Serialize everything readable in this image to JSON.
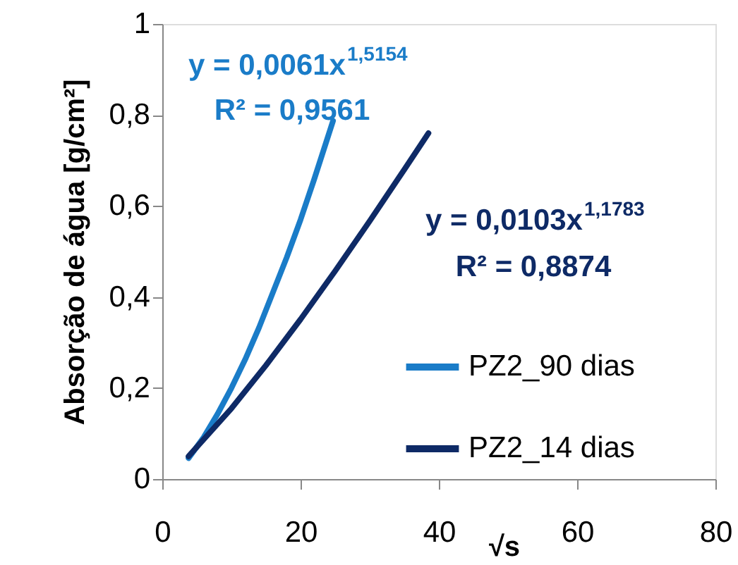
{
  "chart_data": {
    "type": "line",
    "xlabel": "√s",
    "ylabel": "Absorção de água [g/cm²]",
    "xlim": [
      0,
      80
    ],
    "xticks": [
      0,
      20,
      40,
      60,
      80
    ],
    "ylim": [
      0,
      1
    ],
    "yticks": [
      0,
      {
        "value": 0.2,
        "label": "0,2"
      },
      {
        "value": 0.4,
        "label": "0,4"
      },
      {
        "value": 0.6,
        "label": "0,6"
      },
      {
        "value": 0.8,
        "label": "0,8"
      },
      1
    ],
    "grid": false,
    "legend": "right",
    "marker": "none",
    "line_style": "solid",
    "series": [
      {
        "name": "PZ2_90 dias",
        "color": "#1a7cc8",
        "x": [
          3.8,
          6,
          8,
          10,
          12,
          14,
          16,
          18,
          20,
          22,
          24.7
        ],
        "values": [
          0.046,
          0.092,
          0.143,
          0.2,
          0.263,
          0.333,
          0.41,
          0.487,
          0.57,
          0.66,
          0.787
        ]
      },
      {
        "name": "PZ2_14 dias",
        "color": "#0e2a66",
        "x": [
          3.8,
          10,
          15,
          20,
          25,
          30,
          35,
          38.5
        ],
        "values": [
          0.05,
          0.155,
          0.25,
          0.351,
          0.457,
          0.567,
          0.68,
          0.76
        ]
      }
    ],
    "annotations": [
      "y = 0,0061x$^{1,5154}$",
      "R² = 0,9561",
      "y = 0,0103x$^{1,1783}$",
      "R² = 0,8874"
    ]
  }
}
